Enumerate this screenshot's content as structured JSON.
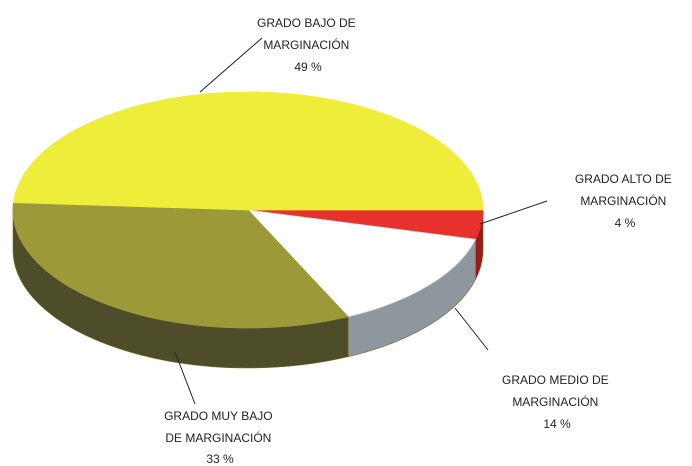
{
  "chart_data": {
    "type": "pie",
    "style": "3d",
    "title": "",
    "slices": [
      {
        "key": "alto",
        "label_lines": [
          "GRADO ALTO DE",
          "MARGINACIÓN"
        ],
        "pct_text": "4 %",
        "value": 4,
        "color": "#e8302c"
      },
      {
        "key": "medio",
        "label_lines": [
          "GRADO MEDIO DE",
          "MARGINACIÓN"
        ],
        "pct_text": "14 %",
        "value": 14,
        "color": "#ffffff"
      },
      {
        "key": "muy_bajo",
        "label_lines": [
          "GRADO MUY BAJO",
          "DE MARGINACIÓN"
        ],
        "pct_text": "33 %",
        "value": 33,
        "color": "#9c9a38"
      },
      {
        "key": "bajo",
        "label_lines": [
          "GRADO BAJO DE",
          "MARGINACIÓN"
        ],
        "pct_text": "49 %",
        "value": 49,
        "color": "#eded3a"
      }
    ],
    "side_colors": {
      "alto": "#9a1a18",
      "medio": "#8e969e",
      "muy_bajo": "#4d4d2a",
      "bajo": "#a8a830"
    },
    "outline_color": "#6b6b20",
    "leader_color": "#222222"
  }
}
